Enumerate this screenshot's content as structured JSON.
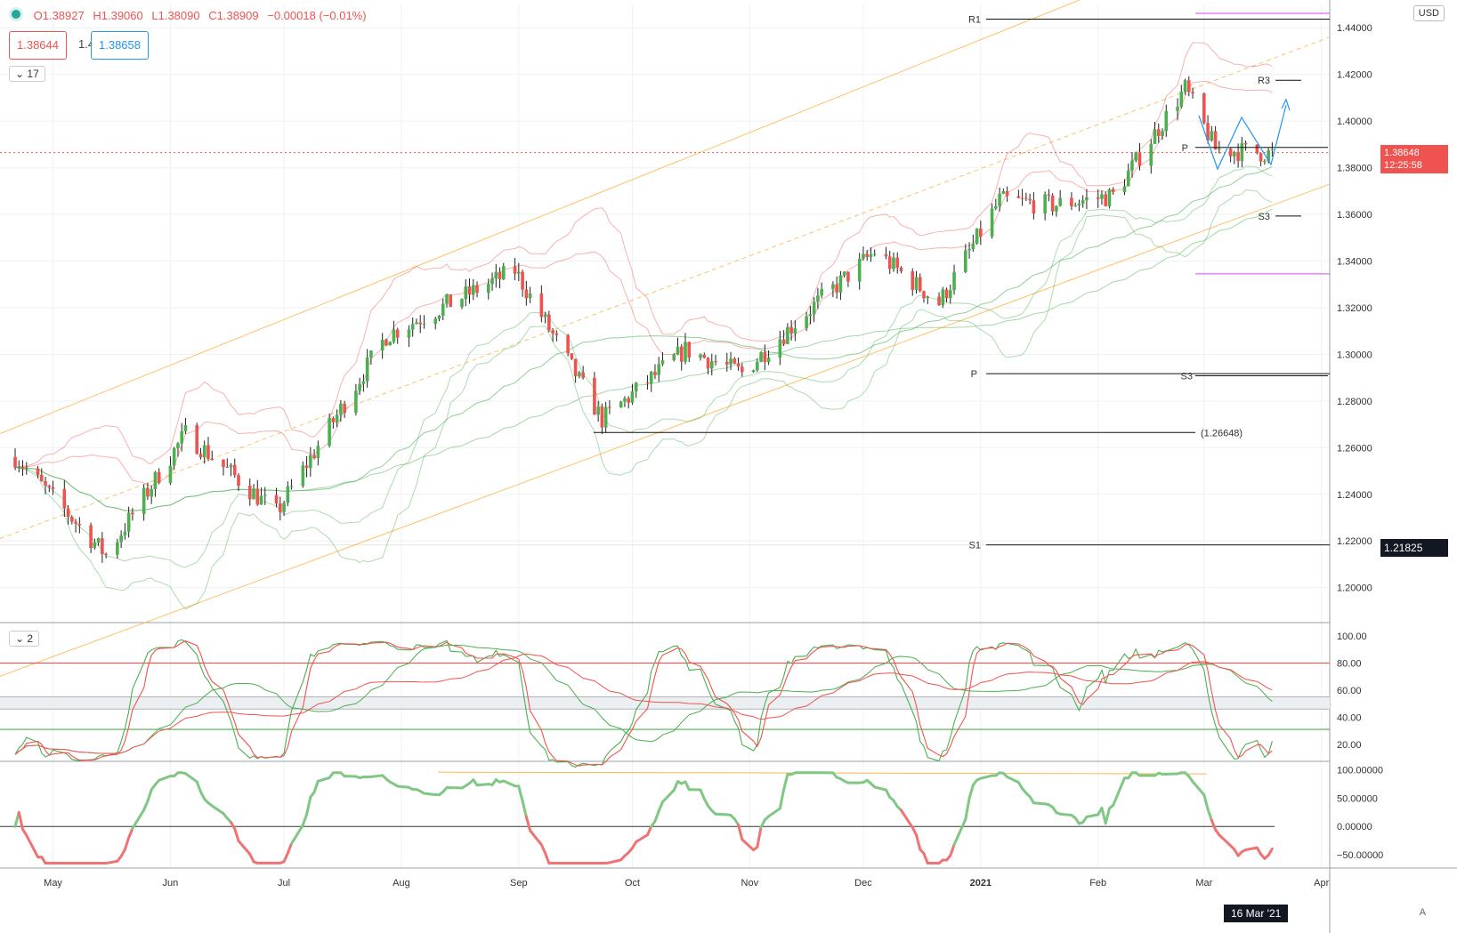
{
  "header": {
    "ohlc": [
      "O1.38927",
      "H1.39060",
      "L1.38090",
      "C1.38909",
      "−0.00018 (−0.01%)"
    ],
    "sell_price": "1.38644",
    "spread": "1.4",
    "buy_price": "1.38658",
    "currency": "USD",
    "indicator_count_main": "17",
    "indicator_count_stoch": "2"
  },
  "tags": {
    "last_price": "1.38648",
    "countdown": "12:25:58",
    "crosshair_price": "1.21825",
    "crosshair_date": "16 Mar '21",
    "axis_mode": "A"
  },
  "colors": {
    "up": "#4caf50",
    "down": "#ef5350",
    "channel": "#ffb74d",
    "stoch_k": "#4caf50",
    "stoch_d": "#ef5350",
    "accent": "#2196f3"
  },
  "chart_data": [
    {
      "type": "candlestick",
      "xlabels": [
        "May",
        "Jun",
        "Jul",
        "Aug",
        "Sep",
        "Oct",
        "Nov",
        "Dec",
        "2021",
        "Feb",
        "Mar",
        "Apr"
      ],
      "y_ticks": [
        "1.20000",
        "1.22000",
        "1.24000",
        "1.26000",
        "1.28000",
        "1.30000",
        "1.32000",
        "1.34000",
        "1.36000",
        "1.38000",
        "1.40000",
        "1.42000",
        "1.44000"
      ],
      "ylim": [
        1.185,
        1.45
      ],
      "close_anchors": [
        [
          "2020-04-21",
          1.256
        ],
        [
          "2020-05-15",
          1.214
        ],
        [
          "2020-06-05",
          1.266
        ],
        [
          "2020-06-29",
          1.232
        ],
        [
          "2020-07-28",
          1.308
        ],
        [
          "2020-08-31",
          1.336
        ],
        [
          "2020-09-23",
          1.272
        ],
        [
          "2020-10-15",
          1.302
        ],
        [
          "2020-10-30",
          1.292
        ],
        [
          "2020-11-16",
          1.318
        ],
        [
          "2020-12-04",
          1.344
        ],
        [
          "2020-12-21",
          1.322
        ],
        [
          "2021-01-06",
          1.366
        ],
        [
          "2021-01-20",
          1.364
        ],
        [
          "2021-02-05",
          1.368
        ],
        [
          "2021-02-24",
          1.414
        ],
        [
          "2021-03-04",
          1.388
        ],
        [
          "2021-03-19",
          1.386
        ]
      ],
      "annotations": {
        "levels": [
          {
            "label": "R1",
            "value": 1.4437
          },
          {
            "label": "R3",
            "value": 1.4175
          },
          {
            "label": "P",
            "value": 1.3887
          },
          {
            "label": "S3",
            "value": 1.3593
          },
          {
            "label": "P",
            "value": 1.2917
          },
          {
            "label": "S3",
            "value": 1.2908
          },
          {
            "label": "S1",
            "value": 1.2183
          },
          {
            "label": "(1.26648)",
            "value": 1.26648
          }
        ],
        "magenta_levels": [
          1.4462,
          1.3345
        ]
      }
    },
    {
      "type": "line",
      "name": "stochastic",
      "y_ticks": [
        "20.00",
        "40.00",
        "60.00",
        "80.00",
        "100.00"
      ],
      "ylim": [
        8,
        108
      ],
      "bands": [
        80,
        55,
        46,
        31
      ]
    },
    {
      "type": "line",
      "name": "oscillator",
      "y_ticks": [
        "−50.00000",
        "0.00000",
        "50.00000",
        "100.00000"
      ],
      "ylim": [
        -72,
        112
      ]
    }
  ]
}
